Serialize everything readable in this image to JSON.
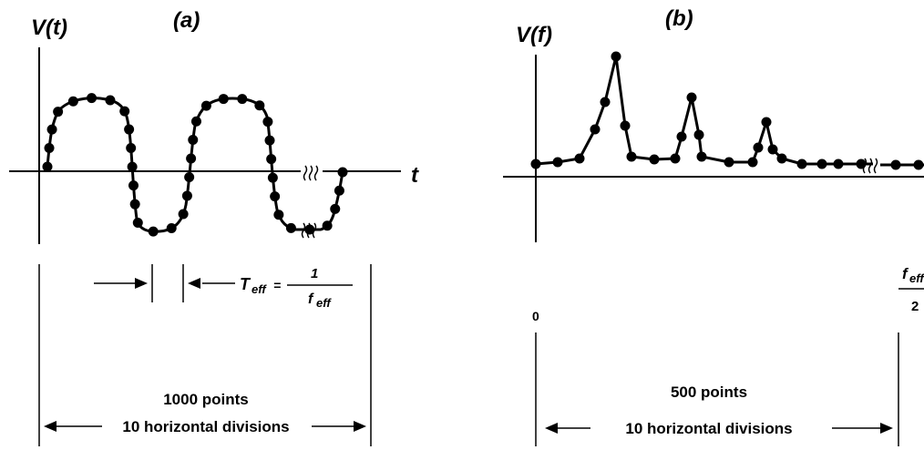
{
  "panel_a": {
    "tag": "(a)",
    "y_label": "V(t)",
    "x_label": "t",
    "period_symbol": "T",
    "period_subscript": "eff",
    "equals": "=",
    "numerator": "1",
    "denominator_symbol": "f",
    "denominator_subscript": "eff",
    "points_label": "1000 points",
    "divisions_label": "10 horizontal divisions"
  },
  "panel_b": {
    "tag": "(b)",
    "y_label": "V(f)",
    "zero_label": "0",
    "end_symbol": "f",
    "end_subscript": "eff",
    "end_denominator": "2",
    "points_label": "500 points",
    "divisions_label": "10 horizontal divisions"
  },
  "colors": {
    "ink": "#000000",
    "background": "#ffffff"
  }
}
